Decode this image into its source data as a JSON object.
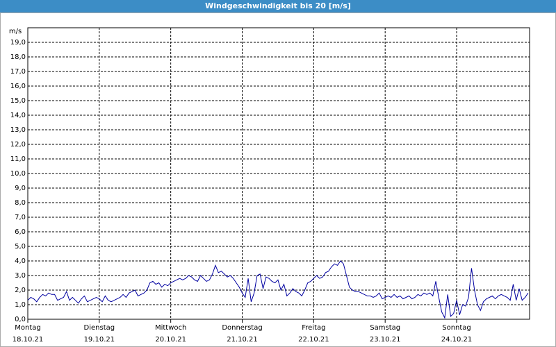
{
  "chart_data": {
    "type": "line",
    "title": "Windgeschwindigkeit bis 20 [m/s]",
    "y_label": "m/s",
    "xlim": [
      0,
      168.5
    ],
    "xticks": [
      {
        "value": 0,
        "label": "Montag",
        "date": "18.10.21"
      },
      {
        "value": 24,
        "label": "Dienstag",
        "date": "19.10.21"
      },
      {
        "value": 48,
        "label": "Mittwoch",
        "date": "20.10.21"
      },
      {
        "value": 72,
        "label": "Donnerstag",
        "date": "21.10.21"
      },
      {
        "value": 96,
        "label": "Freitag",
        "date": "22.10.21"
      },
      {
        "value": 120,
        "label": "Samstag",
        "date": "23.10.21"
      },
      {
        "value": 144,
        "label": "Sonntag",
        "date": "24.10.21"
      }
    ],
    "ylim": [
      0,
      20
    ],
    "yticks": [
      {
        "value": 0,
        "label": "0,0"
      },
      {
        "value": 1,
        "label": "1,0"
      },
      {
        "value": 2,
        "label": "2,0"
      },
      {
        "value": 3,
        "label": "3,0"
      },
      {
        "value": 4,
        "label": "4,0"
      },
      {
        "value": 5,
        "label": "5,0"
      },
      {
        "value": 6,
        "label": "6,0"
      },
      {
        "value": 7,
        "label": "7,0"
      },
      {
        "value": 8,
        "label": "8,0"
      },
      {
        "value": 9,
        "label": "9,0"
      },
      {
        "value": 10,
        "label": "10,0"
      },
      {
        "value": 11,
        "label": "11,0"
      },
      {
        "value": 12,
        "label": "12,0"
      },
      {
        "value": 13,
        "label": "13,0"
      },
      {
        "value": 14,
        "label": "14,0"
      },
      {
        "value": 15,
        "label": "15,0"
      },
      {
        "value": 16,
        "label": "16,0"
      },
      {
        "value": 17,
        "label": "17,0"
      },
      {
        "value": 18,
        "label": "18,0"
      },
      {
        "value": 19,
        "label": "19,0"
      }
    ],
    "grid": true,
    "color": "#0000a0",
    "x": [
      0,
      1,
      2,
      3,
      4,
      5,
      6,
      7,
      8,
      9,
      10,
      11,
      12,
      13,
      14,
      15,
      16,
      17,
      18,
      19,
      20,
      21,
      22,
      23,
      24,
      25,
      26,
      27,
      28,
      29,
      30,
      31,
      32,
      33,
      34,
      35,
      36,
      37,
      38,
      39,
      40,
      41,
      42,
      43,
      44,
      45,
      46,
      47,
      48,
      49,
      50,
      51,
      52,
      53,
      54,
      55,
      56,
      57,
      58,
      59,
      60,
      61,
      62,
      63,
      64,
      65,
      66,
      67,
      68,
      69,
      70,
      71,
      72,
      73,
      74,
      75,
      76,
      77,
      78,
      79,
      80,
      81,
      82,
      83,
      84,
      85,
      86,
      87,
      88,
      89,
      90,
      91,
      92,
      93,
      94,
      95,
      96,
      97,
      98,
      99,
      100,
      101,
      102,
      103,
      104,
      105,
      106,
      107,
      108,
      109,
      110,
      111,
      112,
      113,
      114,
      115,
      116,
      117,
      118,
      119,
      120,
      121,
      122,
      123,
      124,
      125,
      126,
      127,
      128,
      129,
      130,
      131,
      132,
      133,
      134,
      135,
      136,
      137,
      138,
      139,
      140,
      141,
      142,
      143,
      144,
      145,
      146,
      147,
      148,
      149,
      150,
      151,
      152,
      153,
      154,
      155,
      156,
      157,
      158,
      159,
      160,
      161,
      162,
      163,
      164,
      165,
      166,
      167,
      168
    ],
    "values": [
      1.3,
      1.5,
      1.4,
      1.2,
      1.5,
      1.7,
      1.6,
      1.8,
      1.7,
      1.7,
      1.3,
      1.4,
      1.5,
      1.9,
      1.3,
      1.5,
      1.3,
      1.1,
      1.4,
      1.6,
      1.2,
      1.3,
      1.4,
      1.5,
      1.4,
      1.2,
      1.6,
      1.3,
      1.2,
      1.3,
      1.4,
      1.5,
      1.7,
      1.5,
      1.8,
      1.9,
      2.0,
      1.6,
      1.7,
      1.8,
      2.0,
      2.5,
      2.6,
      2.4,
      2.5,
      2.2,
      2.4,
      2.3,
      2.5,
      2.6,
      2.7,
      2.8,
      2.7,
      2.8,
      3.0,
      2.9,
      2.7,
      2.6,
      3.0,
      2.8,
      2.6,
      2.7,
      3.1,
      3.7,
      3.2,
      3.3,
      3.1,
      2.9,
      3.0,
      2.8,
      2.5,
      2.2,
      1.8,
      1.5,
      2.8,
      1.2,
      1.8,
      3.0,
      3.1,
      2.1,
      2.9,
      2.8,
      2.6,
      2.5,
      2.7,
      2.0,
      2.4,
      1.6,
      1.8,
      2.1,
      1.9,
      1.8,
      1.6,
      2.0,
      2.5,
      2.6,
      2.8,
      3.0,
      2.8,
      2.9,
      3.2,
      3.3,
      3.6,
      3.8,
      3.7,
      4.0,
      3.8,
      3.0,
      2.2,
      2.0,
      1.9,
      1.9,
      1.8,
      1.7,
      1.6,
      1.6,
      1.5,
      1.6,
      1.8,
      1.4,
      1.5,
      1.6,
      1.5,
      1.7,
      1.5,
      1.6,
      1.4,
      1.5,
      1.6,
      1.4,
      1.5,
      1.7,
      1.6,
      1.8,
      1.7,
      1.8,
      1.6,
      2.6,
      1.5,
      0.5,
      0.1,
      1.7,
      0.2,
      0.4,
      1.3,
      0.3,
      1.0,
      0.9,
      1.5,
      3.5,
      2.0,
      1.0,
      0.6,
      1.2,
      1.4,
      1.5,
      1.6,
      1.4,
      1.6,
      1.7,
      1.6,
      1.5,
      1.3,
      2.4,
      1.3,
      2.1,
      1.3,
      1.5,
      1.8
    ]
  }
}
